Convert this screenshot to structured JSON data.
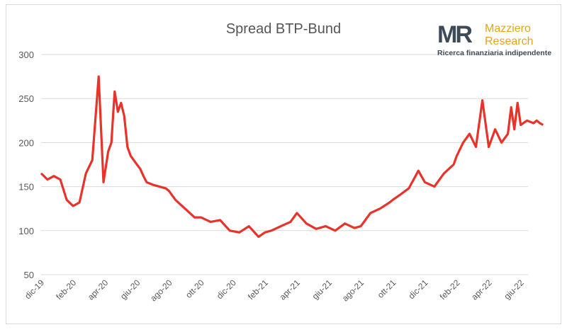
{
  "chart_data": {
    "type": "line",
    "title": "Spread BTP-Bund",
    "xlabel": "",
    "ylabel": "",
    "ylim": [
      50,
      300
    ],
    "yticks": [
      50,
      100,
      150,
      200,
      250,
      300
    ],
    "x_tick_labels": [
      "dic-19",
      "feb-20",
      "apr-20",
      "giu-20",
      "ago-20",
      "ott-20",
      "dic-20",
      "feb-21",
      "apr-21",
      "giu-21",
      "ago-21",
      "ott-21",
      "dic-21",
      "feb-22",
      "apr-22",
      "giu-22"
    ],
    "grid": true,
    "legend": "none",
    "series": [
      {
        "color": "#e8332a",
        "x": [
          0,
          0.2,
          0.4,
          0.6,
          0.8,
          1.0,
          1.2,
          1.4,
          1.6,
          1.8,
          1.95,
          2.1,
          2.2,
          2.25,
          2.3,
          2.4,
          2.5,
          2.6,
          2.7,
          2.8,
          2.9,
          3.0,
          3.1,
          3.2,
          3.3,
          3.5,
          3.7,
          3.9,
          4.0,
          4.2,
          4.5,
          4.8,
          5.0,
          5.3,
          5.6,
          5.9,
          6.2,
          6.5,
          6.8,
          7.0,
          7.2,
          7.5,
          7.8,
          8.0,
          8.3,
          8.6,
          8.9,
          9.2,
          9.5,
          9.8,
          10.0,
          10.3,
          10.6,
          10.9,
          11.0,
          11.2,
          11.5,
          11.8,
          12.0,
          12.3,
          12.6,
          12.9,
          13.0,
          13.2,
          13.4,
          13.6,
          13.8,
          14.0,
          14.2,
          14.4,
          14.6,
          14.7,
          14.8,
          14.9,
          15.0,
          15.2,
          15.4,
          15.5,
          15.6,
          15.7
        ],
        "values": [
          165,
          158,
          162,
          158,
          135,
          128,
          132,
          165,
          180,
          275,
          155,
          190,
          200,
          230,
          258,
          235,
          245,
          230,
          195,
          185,
          180,
          175,
          170,
          162,
          155,
          152,
          150,
          148,
          145,
          135,
          125,
          115,
          115,
          110,
          112,
          100,
          98,
          105,
          93,
          98,
          100,
          105,
          110,
          120,
          108,
          102,
          105,
          100,
          108,
          103,
          105,
          120,
          125,
          132,
          135,
          140,
          148,
          168,
          155,
          150,
          165,
          175,
          185,
          200,
          210,
          195,
          248,
          195,
          215,
          200,
          210,
          240,
          215,
          245,
          220,
          225,
          222,
          225,
          222,
          220
        ]
      }
    ]
  },
  "logo": {
    "mark": "MR",
    "name_line1": "Mazziero",
    "name_line2": "Research",
    "tagline": "Ricerca finanziaria indipendente"
  }
}
